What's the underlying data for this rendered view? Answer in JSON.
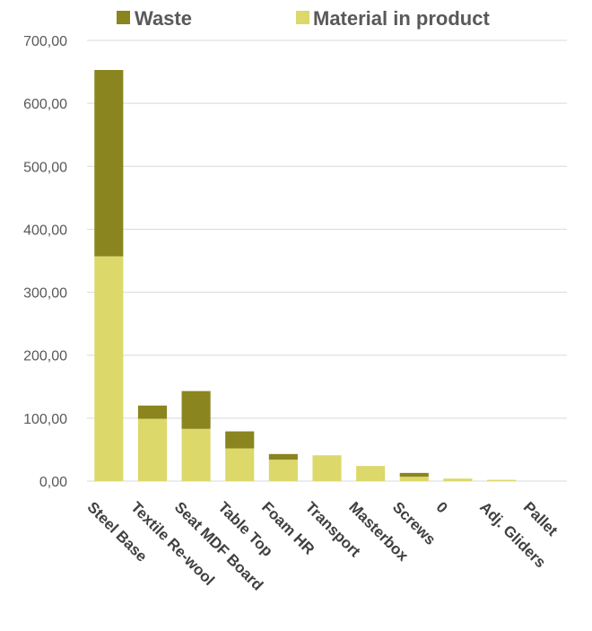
{
  "chart_data": {
    "type": "bar",
    "stacked": true,
    "categories": [
      "Steel Base",
      "Textile Re-wool",
      "Seat MDF Board",
      "Table Top",
      "Foam HR",
      "Transport",
      "Masterbox",
      "Screws",
      "0",
      "Adj. Gliders",
      "Pallet"
    ],
    "series": [
      {
        "name": "Material in product",
        "color": "#dcd86a",
        "values": [
          357,
          99,
          83,
          52,
          34,
          41,
          24,
          7,
          4,
          2,
          0
        ]
      },
      {
        "name": "Waste",
        "color": "#8a851f",
        "values": [
          296,
          21,
          60,
          27,
          9,
          0,
          0,
          6,
          0,
          0,
          0
        ]
      }
    ],
    "yticks": [
      "0,00",
      "100,00",
      "200,00",
      "300,00",
      "400,00",
      "500,00",
      "600,00",
      "700,00"
    ],
    "ylim": [
      0,
      700
    ],
    "grid": true,
    "legend_position": "top"
  }
}
